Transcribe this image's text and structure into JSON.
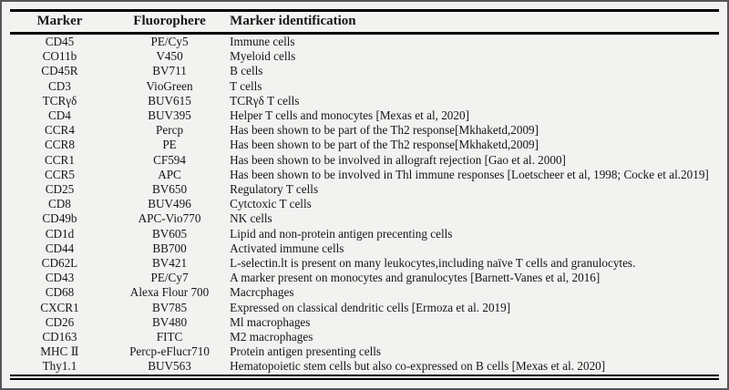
{
  "table": {
    "columns": [
      "Marker",
      "Fluorophere",
      "Marker identification"
    ],
    "rows": [
      {
        "marker": "CD45",
        "fluorophore": "PE/Cy5",
        "identification": "Immune cells"
      },
      {
        "marker": "CO11b",
        "fluorophore": "V450",
        "identification": "Myeloid cells"
      },
      {
        "marker": "CD45R",
        "fluorophore": "BV711",
        "identification": "B cells"
      },
      {
        "marker": "CD3",
        "fluorophore": "VioGreen",
        "identification": "T cells"
      },
      {
        "marker": "TCRγδ",
        "fluorophore": "BUV615",
        "identification": "TCRγδ T cells"
      },
      {
        "marker": "CD4",
        "fluorophore": "BUV395",
        "identification": "Helper T cells and monocytes [Mexas et al, 2020]"
      },
      {
        "marker": "CCR4",
        "fluorophore": "Percp",
        "identification": "Has been shown to be part of the Th2 response[Mkhaketd,2009]"
      },
      {
        "marker": "CCR8",
        "fluorophore": "PE",
        "identification": "Has been shown to be part of the Th2 response[Mkhaketd,2009]"
      },
      {
        "marker": "CCR1",
        "fluorophore": "CF594",
        "identification": "Has been shown to be involved in allograft rejection [Gao et al. 2000]"
      },
      {
        "marker": "CCR5",
        "fluorophore": "APC",
        "identification": "Has been shown to be involved in Thl immune responses [Loetscheer et al, 1998; Cocke et al.2019]"
      },
      {
        "marker": "CD25",
        "fluorophore": "BV650",
        "identification": "Regulatory T cells"
      },
      {
        "marker": "CD8",
        "fluorophore": "BUV496",
        "identification": "Cytctoxic T cells"
      },
      {
        "marker": "CD49b",
        "fluorophore": "APC-Vio770",
        "identification": "NK cells"
      },
      {
        "marker": "CD1d",
        "fluorophore": "BV605",
        "identification": "Lipid and non-protein antigen precenting cells"
      },
      {
        "marker": "CD44",
        "fluorophore": "BB700",
        "identification": "Activated immune cells"
      },
      {
        "marker": "CD62L",
        "fluorophore": "BV421",
        "identification": "L-selectin.lt is present on many leukocytes,including naïve T cells and granulocytes."
      },
      {
        "marker": "CD43",
        "fluorophore": "PE/Cy7",
        "identification": "A marker present on monocytes and granulocytes [Barnett-Vanes et al, 2016]"
      },
      {
        "marker": "CD68",
        "fluorophore": "Alexa Flour 700",
        "identification": "Macrcphages"
      },
      {
        "marker": "CXCR1",
        "fluorophore": "BV785",
        "identification": "Expressed on classical dendritic cells [Ermoza et al. 2019]"
      },
      {
        "marker": "CD26",
        "fluorophore": "BV480",
        "identification": "Ml macrophages"
      },
      {
        "marker": "CD163",
        "fluorophore": "FITC",
        "identification": "M2 macrophages"
      },
      {
        "marker": "MHC Ⅱ",
        "fluorophore": "Percp-eFlucr710",
        "identification": "Protein antigen presenting cells"
      },
      {
        "marker": "Thy1.1",
        "fluorophore": "BUV563",
        "identification": "Hematopoietic stem cells but also co-expressed on B cells [Mexas et al. 2020]"
      }
    ]
  },
  "colors": {
    "text": "#161616",
    "rule": "#000000",
    "background": "#f2f2f0",
    "frame": "#55565a"
  }
}
